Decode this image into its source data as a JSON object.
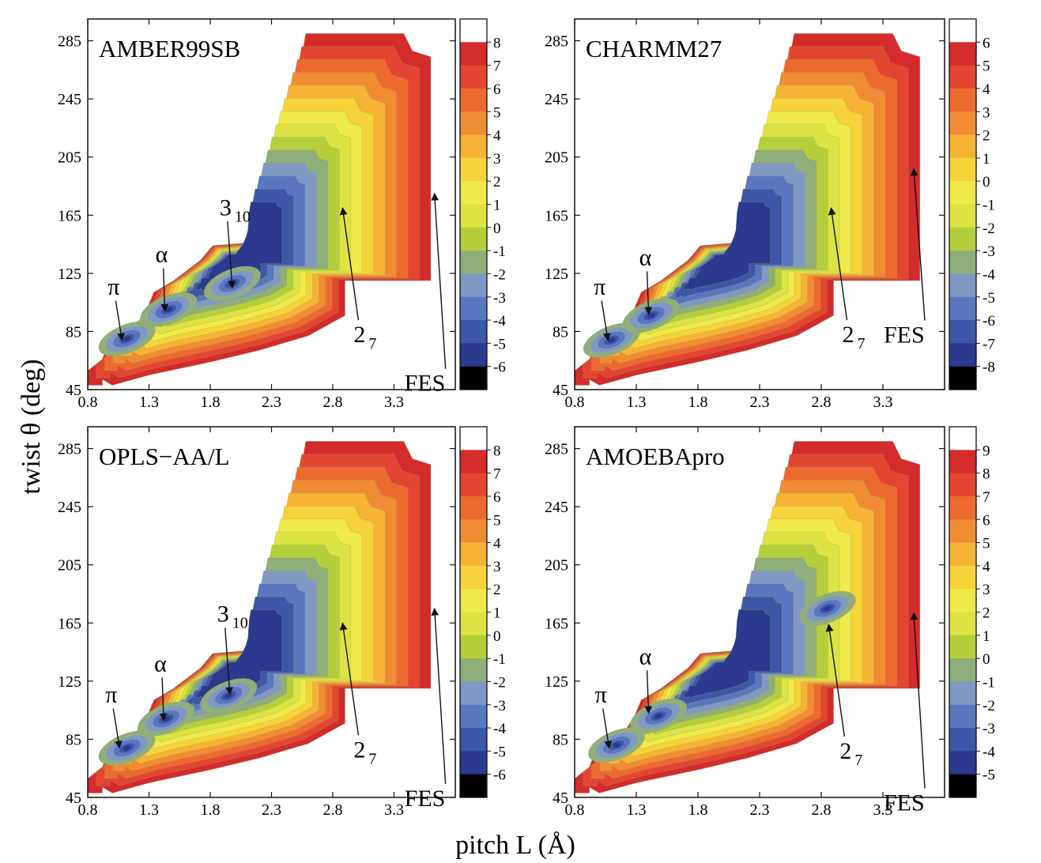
{
  "figure": {
    "ylabel": "twist  θ (deg)",
    "xlabel": "pitch  L (Å)"
  },
  "colormap": [
    "#2b3a8f",
    "#3c57a8",
    "#5a76bf",
    "#7f98c4",
    "#8fae7a",
    "#b5cf3c",
    "#dbe444",
    "#f0e94a",
    "#f6d33a",
    "#f6b336",
    "#f08c33",
    "#ec6a30",
    "#e34630",
    "#d42b2c",
    "#ffffff"
  ],
  "chart_data": [
    {
      "type": "heatmap",
      "title": "AMBER99SB",
      "xlim": [
        0.8,
        3.8
      ],
      "ylim": [
        45,
        300
      ],
      "x_ticks": [
        "0.8",
        "1.3",
        "1.8",
        "2.3",
        "2.8",
        "3.3"
      ],
      "y_ticks": [
        "45",
        "85",
        "125",
        "165",
        "205",
        "245",
        "285"
      ],
      "colorbar_ticks": [
        "8",
        "7",
        "6",
        "5",
        "4",
        "3",
        "2",
        "1",
        "0",
        "-1",
        "-2",
        "-3",
        "-4",
        "-5",
        "-6"
      ],
      "annotations": [
        {
          "label": "π",
          "x": 1.08,
          "y": 79
        },
        {
          "label": "α",
          "x": 1.43,
          "y": 99
        },
        {
          "label": "3",
          "sub": "10",
          "x": 1.98,
          "y": 115
        },
        {
          "label": "2",
          "sub": "7",
          "x": 2.88,
          "y": 170
        },
        {
          "label": "FES",
          "x": 3.63,
          "y": 180
        }
      ],
      "minima": [
        {
          "name": "π",
          "x": 1.12,
          "y": 80,
          "level": -6
        },
        {
          "name": "α",
          "x": 1.46,
          "y": 100,
          "level": -6
        },
        {
          "name": "3",
          "x": 1.98,
          "y": 118,
          "level": -4
        }
      ]
    },
    {
      "type": "heatmap",
      "title": "CHARMM27",
      "xlim": [
        0.8,
        3.8
      ],
      "ylim": [
        45,
        300
      ],
      "x_ticks": [
        "0.8",
        "1.3",
        "1.8",
        "2.3",
        "2.8",
        "3.3"
      ],
      "y_ticks": [
        "45",
        "85",
        "125",
        "165",
        "205",
        "245",
        "285"
      ],
      "colorbar_ticks": [
        "6",
        "5",
        "4",
        "3",
        "2",
        "1",
        "0",
        "-1",
        "-2",
        "-3",
        "-4",
        "-5",
        "-6",
        "-7",
        "-8"
      ],
      "annotations": [
        {
          "label": "π",
          "x": 1.07,
          "y": 79
        },
        {
          "label": "α",
          "x": 1.4,
          "y": 97
        },
        {
          "label": "2",
          "sub": "7",
          "x": 2.88,
          "y": 170
        },
        {
          "label": "FES",
          "x": 3.55,
          "y": 197
        }
      ],
      "minima": [
        {
          "name": "π",
          "x": 1.1,
          "y": 79,
          "level": -7
        },
        {
          "name": "α",
          "x": 1.42,
          "y": 96,
          "level": -6
        }
      ]
    },
    {
      "type": "heatmap",
      "title": "OPLS−AA/L",
      "xlim": [
        0.8,
        3.8
      ],
      "ylim": [
        45,
        300
      ],
      "x_ticks": [
        "0.8",
        "1.3",
        "1.8",
        "2.3",
        "2.8",
        "3.3"
      ],
      "y_ticks": [
        "45",
        "85",
        "125",
        "165",
        "205",
        "245",
        "285"
      ],
      "colorbar_ticks": [
        "8",
        "7",
        "6",
        "5",
        "4",
        "3",
        "2",
        "1",
        "0",
        "-1",
        "-2",
        "-3",
        "-4",
        "-5",
        "-6"
      ],
      "annotations": [
        {
          "label": "π",
          "x": 1.06,
          "y": 79
        },
        {
          "label": "α",
          "x": 1.42,
          "y": 98
        },
        {
          "label": "3",
          "sub": "10",
          "x": 1.96,
          "y": 116
        },
        {
          "label": "2",
          "sub": "7",
          "x": 2.88,
          "y": 165
        },
        {
          "label": "FES",
          "x": 3.63,
          "y": 175
        }
      ],
      "minima": [
        {
          "name": "π",
          "x": 1.12,
          "y": 79,
          "level": -6
        },
        {
          "name": "α",
          "x": 1.44,
          "y": 99,
          "level": -6
        },
        {
          "name": "3",
          "x": 1.95,
          "y": 115,
          "level": -4
        }
      ]
    },
    {
      "type": "heatmap",
      "title": "AMOEBApro",
      "xlim": [
        0.8,
        3.8
      ],
      "ylim": [
        45,
        300
      ],
      "x_ticks": [
        "0.8",
        "1.3",
        "1.8",
        "2.3",
        "2.8",
        "3.3"
      ],
      "y_ticks": [
        "45",
        "85",
        "125",
        "165",
        "205",
        "245",
        "285"
      ],
      "colorbar_ticks": [
        "9",
        "8",
        "7",
        "6",
        "5",
        "4",
        "3",
        "2",
        "1",
        "0",
        "-1",
        "-2",
        "-3",
        "-4",
        "-5"
      ],
      "annotations": [
        {
          "label": "π",
          "x": 1.08,
          "y": 79
        },
        {
          "label": "α",
          "x": 1.4,
          "y": 103
        },
        {
          "label": "2",
          "sub": "7",
          "x": 2.86,
          "y": 164
        },
        {
          "label": "FES",
          "x": 3.55,
          "y": 172
        }
      ],
      "minima": [
        {
          "name": "π",
          "x": 1.14,
          "y": 81,
          "level": -4
        },
        {
          "name": "α",
          "x": 1.48,
          "y": 101,
          "level": -4
        },
        {
          "name": "2",
          "x": 2.85,
          "y": 175,
          "level": -2
        }
      ]
    }
  ]
}
